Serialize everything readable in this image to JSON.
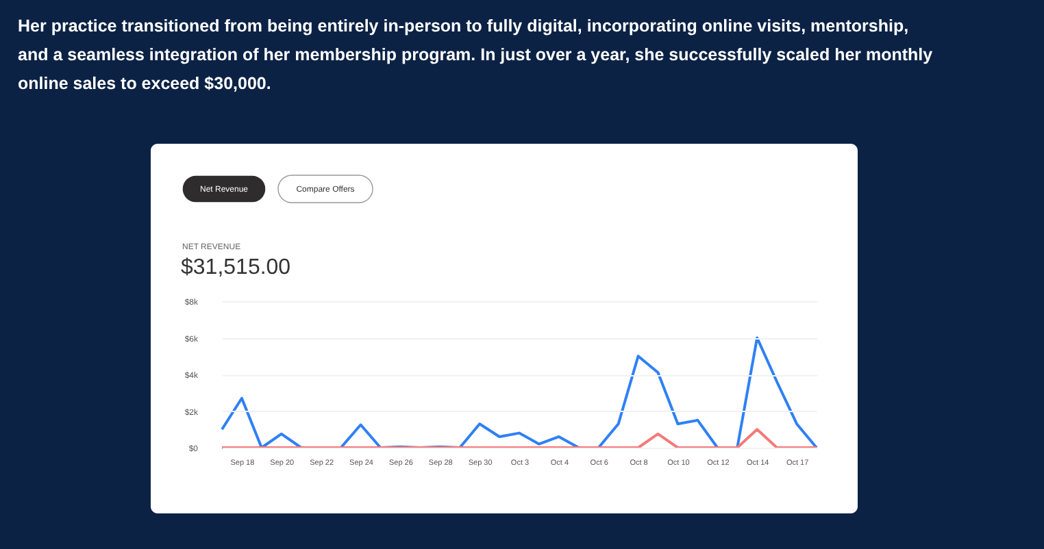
{
  "chart_data": {
    "type": "line",
    "title": "Her practice transitioned from being entirely in-person to fully digital, incorporating online visits, mentorship, and a seamless integration of her membership program. In just over a year, she successfully scaled her monthly online sales to exceed $30,000.",
    "annotations": [
      "Net Revenue",
      "Compare Offers",
      "NET REVENUE",
      "$31,515.00"
    ],
    "categories": [
      null,
      "Sep 18",
      null,
      "Sep 20",
      null,
      "Sep 22",
      null,
      "Sep 24",
      null,
      "Sep 26",
      null,
      "Sep 28",
      null,
      "Sep 30",
      null,
      "Oct 3",
      null,
      "Oct 4",
      null,
      "Oct 6",
      null,
      "Oct 8",
      null,
      "Oct 10",
      null,
      "Oct 12",
      null,
      "Oct 14",
      null,
      "Oct 17",
      null
    ],
    "series": [
      {
        "color": "#2f80f6",
        "values": [
          1000,
          2700,
          0,
          750,
          0,
          0,
          0,
          1250,
          0,
          50,
          0,
          50,
          0,
          1300,
          600,
          800,
          200,
          600,
          0,
          0,
          1300,
          5000,
          4100,
          1300,
          1500,
          0,
          0,
          6000,
          3600,
          1300,
          0
        ]
      },
      {
        "color": "#f47a7a",
        "values": [
          0,
          0,
          0,
          0,
          0,
          0,
          0,
          0,
          0,
          0,
          0,
          0,
          0,
          0,
          0,
          0,
          0,
          0,
          0,
          0,
          0,
          0,
          750,
          0,
          0,
          0,
          0,
          1000,
          0,
          0,
          0
        ]
      }
    ],
    "ylim": [
      0,
      8000
    ],
    "yticks": [
      {
        "value": 0,
        "label": "$0"
      },
      {
        "value": 2000,
        "label": "$2k"
      },
      {
        "value": 4000,
        "label": "$4k"
      },
      {
        "value": 6000,
        "label": "$6k"
      },
      {
        "value": 8000,
        "label": "$8k"
      }
    ],
    "grid": "y",
    "legend": false,
    "marker": "none",
    "line_style": "solid"
  }
}
